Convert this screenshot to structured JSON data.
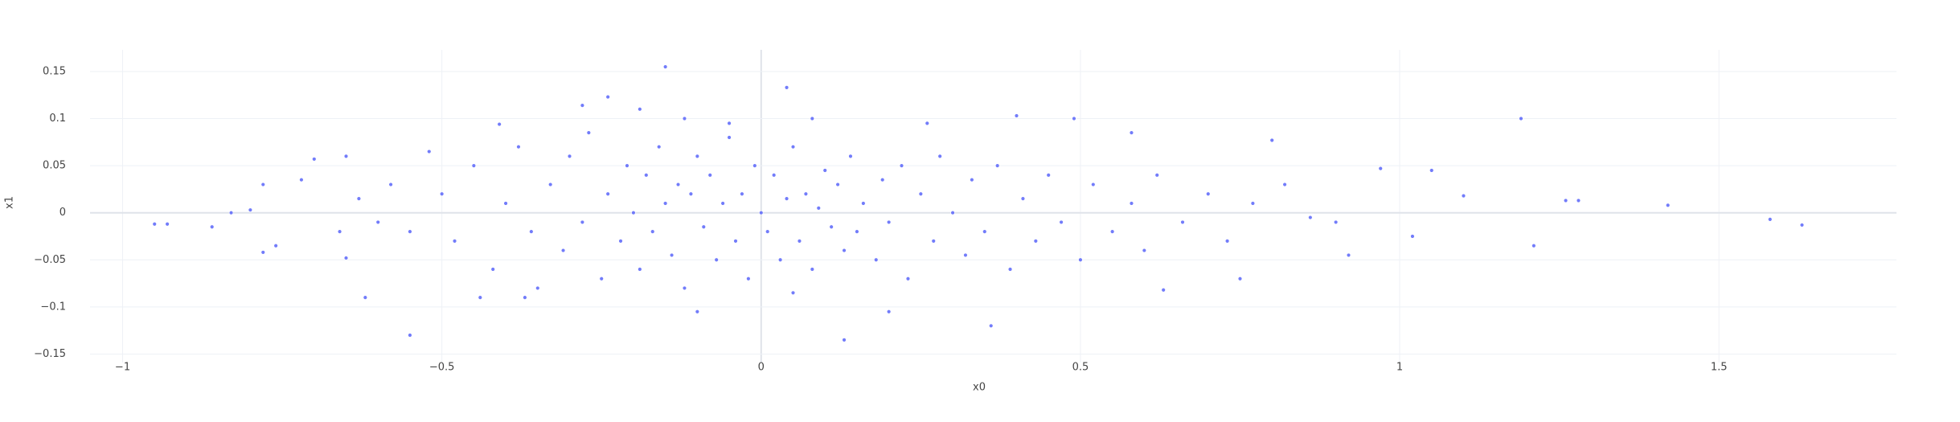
{
  "chart_data": {
    "type": "scatter",
    "x_label": "x0",
    "y_label": "x1",
    "xlim": [
      -1.051,
      1.778
    ],
    "ylim": [
      -0.159,
      0.173
    ],
    "xticks": [
      {
        "value": -1,
        "label": "−1"
      },
      {
        "value": -0.5,
        "label": "−0.5"
      },
      0,
      0.5,
      1,
      1.5
    ],
    "yticks": [
      {
        "value": -0.15,
        "label": "−0.15"
      },
      {
        "value": -0.1,
        "label": "−0.1"
      },
      {
        "value": -0.05,
        "label": "−0.05"
      },
      0,
      0.05,
      0.1,
      0.15
    ],
    "grid": true,
    "zeroline": true,
    "color": "#636efa",
    "x": [
      -0.95,
      -0.93,
      -0.86,
      -0.83,
      -0.8,
      -0.78,
      -0.78,
      -0.76,
      -0.72,
      -0.7,
      -0.65,
      -0.65,
      -0.62,
      -0.55,
      -0.15,
      0.04,
      0.13,
      0.36,
      1.19,
      1.21,
      1.26,
      1.28,
      1.42,
      1.58,
      1.63,
      1.1,
      1.05,
      1.02,
      0.97,
      0.92,
      0.8,
      0.75,
      0.63,
      0.58,
      0.49,
      0.4,
      -0.24,
      -0.19,
      -0.28,
      -0.41,
      -0.1,
      -0.5,
      -0.48,
      -0.45,
      -0.42,
      -0.4,
      -0.38,
      -0.36,
      -0.35,
      -0.33,
      -0.31,
      -0.3,
      -0.28,
      -0.27,
      -0.25,
      -0.24,
      -0.22,
      -0.21,
      -0.2,
      -0.19,
      -0.18,
      -0.17,
      -0.16,
      -0.15,
      -0.14,
      -0.13,
      -0.12,
      -0.11,
      -0.1,
      -0.09,
      -0.08,
      -0.07,
      -0.06,
      -0.05,
      -0.04,
      -0.03,
      -0.02,
      -0.01,
      0,
      0.01,
      0.02,
      0.03,
      0.04,
      0.05,
      0.06,
      0.07,
      0.08,
      0.09,
      0.1,
      0.11,
      0.12,
      0.13,
      0.14,
      0.15,
      0.16,
      0.18,
      0.19,
      0.2,
      0.22,
      0.23,
      0.25,
      0.27,
      0.28,
      0.3,
      0.32,
      0.33,
      0.35,
      0.37,
      0.39,
      0.41,
      0.43,
      0.45,
      0.47,
      0.5,
      0.52,
      0.55,
      0.58,
      0.6,
      0.62,
      0.66,
      0.7,
      0.73,
      0.77,
      0.82,
      0.86,
      0.9,
      -0.55,
      -0.58,
      -0.6,
      -0.63,
      -0.66,
      -0.52,
      -0.44,
      -0.37,
      0.08,
      0.2,
      0.26,
      -0.12,
      0.05,
      -0.05
    ],
    "y": [
      -0.012,
      -0.012,
      -0.015,
      0,
      0.003,
      0.03,
      -0.042,
      -0.035,
      0.035,
      0.057,
      0.06,
      -0.048,
      -0.09,
      -0.13,
      0.155,
      0.133,
      -0.135,
      -0.12,
      0.1,
      -0.035,
      0.013,
      0.013,
      0.008,
      -0.007,
      -0.013,
      0.018,
      0.045,
      -0.025,
      0.047,
      -0.045,
      0.077,
      -0.07,
      -0.082,
      0.085,
      0.1,
      0.103,
      0.123,
      0.11,
      0.114,
      0.094,
      -0.105,
      0.02,
      -0.03,
      0.05,
      -0.06,
      0.01,
      0.07,
      -0.02,
      -0.08,
      0.03,
      -0.04,
      0.06,
      -0.01,
      0.085,
      -0.07,
      0.02,
      -0.03,
      0.05,
      0,
      -0.06,
      0.04,
      -0.02,
      0.07,
      0.01,
      -0.045,
      0.03,
      -0.08,
      0.02,
      0.06,
      -0.015,
      0.04,
      -0.05,
      0.01,
      0.08,
      -0.03,
      0.02,
      -0.07,
      0.05,
      0,
      -0.02,
      0.04,
      -0.05,
      0.015,
      0.07,
      -0.03,
      0.02,
      -0.06,
      0.005,
      0.045,
      -0.015,
      0.03,
      -0.04,
      0.06,
      -0.02,
      0.01,
      -0.05,
      0.035,
      -0.01,
      0.05,
      -0.07,
      0.02,
      -0.03,
      0.06,
      0,
      -0.045,
      0.035,
      -0.02,
      0.05,
      -0.06,
      0.015,
      -0.03,
      0.04,
      -0.01,
      -0.05,
      0.03,
      -0.02,
      0.01,
      -0.04,
      0.04,
      -0.01,
      0.02,
      -0.03,
      0.01,
      0.03,
      -0.005,
      -0.01,
      -0.02,
      0.03,
      -0.01,
      0.015,
      -0.02,
      0.065,
      -0.09,
      -0.09,
      0.1,
      -0.105,
      0.095,
      0.1,
      -0.085,
      0.095
    ]
  }
}
